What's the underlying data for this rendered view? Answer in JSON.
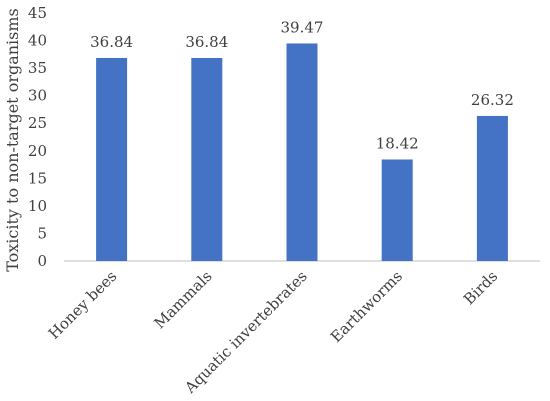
{
  "chart_data": {
    "type": "bar",
    "categories": [
      "Honey bees",
      "Mammals",
      "Aquatic invertebrates",
      "Earthworms",
      "Birds"
    ],
    "values": [
      36.84,
      36.84,
      39.47,
      18.42,
      26.32
    ],
    "data_labels": [
      "36.84",
      "36.84",
      "39.47",
      "18.42",
      "26.32"
    ],
    "title": "",
    "xlabel": "",
    "ylabel": "Toxicity to non-target organisms",
    "ylim": [
      0,
      45
    ],
    "yticks": [
      0,
      5,
      10,
      15,
      20,
      25,
      30,
      35,
      40,
      45
    ],
    "grid": false,
    "legend": "none",
    "bar_color": "#4472C4",
    "axis_color": "#BFBFBF"
  }
}
